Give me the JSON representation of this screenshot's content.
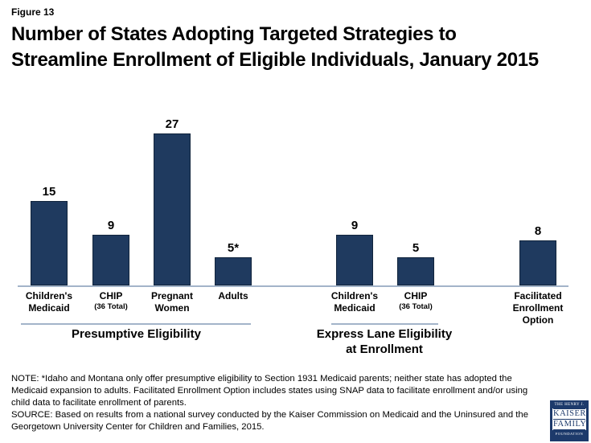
{
  "header": {
    "figure_label": "Figure 13",
    "title_line1": "Number of States Adopting Targeted Strategies to",
    "title_line2": "Streamline Enrollment of Eligible Individuals, January 2015"
  },
  "chart_data": {
    "type": "bar",
    "title": "Number of States Adopting Targeted Strategies to Streamline Enrollment of Eligible Individuals, January 2015",
    "ylim": [
      0,
      28
    ],
    "grid": false,
    "legend": "none",
    "bar_color": "#1f3a5f",
    "axis_color": "#a3b4c9",
    "groups": [
      {
        "label": "Presumptive Eligibility",
        "categories": [
          "Children's Medicaid",
          "CHIP (36 Total)",
          "Pregnant Women",
          "Adults"
        ],
        "values": [
          15,
          9,
          27,
          5
        ]
      },
      {
        "label": "Express Lane Eligibility at Enrollment",
        "categories": [
          "Children's Medicaid",
          "CHIP (36 Total)"
        ],
        "values": [
          9,
          5
        ]
      },
      {
        "label": "",
        "categories": [
          "Facilitated Enrollment Option"
        ],
        "values": [
          8
        ]
      }
    ],
    "bars": [
      {
        "value": 15,
        "display_value": "15",
        "category_line1": "Children's",
        "category_line2": "Medicaid",
        "group": "Presumptive Eligibility"
      },
      {
        "value": 9,
        "display_value": "9",
        "category_line1": "CHIP",
        "category_sub": "(36 Total)",
        "group": "Presumptive Eligibility"
      },
      {
        "value": 27,
        "display_value": "27",
        "category_line1": "Pregnant",
        "category_line2": "Women",
        "group": "Presumptive Eligibility"
      },
      {
        "value": 5,
        "display_value": "5*",
        "category_line1": "Adults",
        "group": "Presumptive Eligibility"
      },
      {
        "value": 9,
        "display_value": "9",
        "category_line1": "Children's",
        "category_line2": "Medicaid",
        "group": "Express Lane Eligibility at Enrollment"
      },
      {
        "value": 5,
        "display_value": "5",
        "category_line1": "CHIP",
        "category_sub": "(36 Total)",
        "group": "Express Lane Eligibility at Enrollment"
      },
      {
        "value": 8,
        "display_value": "8",
        "category_line1": "Facilitated",
        "category_line2": "Enrollment",
        "category_line3": "Option",
        "group": ""
      }
    ]
  },
  "group_labels": {
    "presumptive": "Presumptive Eligibility",
    "express_line1": "Express Lane Eligibility",
    "express_line2": "at Enrollment"
  },
  "notes": {
    "lines": [
      "NOTE: *Idaho and Montana only offer presumptive eligibility to Section 1931 Medicaid parents; neither state has adopted the",
      "Medicaid expansion to adults. Facilitated Enrollment Option includes states using SNAP data to facilitate enrollment and/or using",
      "child data to facilitate enrollment of parents.",
      "SOURCE: Based on results from a national survey conducted by the Kaiser Commission on Medicaid and the Uninsured and the",
      "Georgetown University Center for Children and Families, 2015."
    ]
  },
  "logo": {
    "color": "#1d3a6b",
    "line1": "THE HENRY J.",
    "line2": "KAISER",
    "line3": "FAMILY",
    "line4": "FOUNDATION"
  }
}
